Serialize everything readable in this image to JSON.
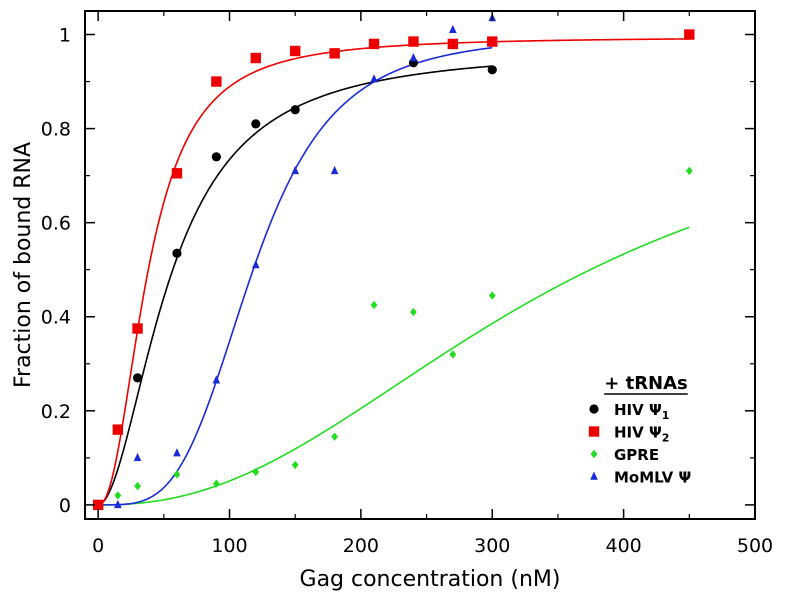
{
  "chart_data": {
    "type": "scatter",
    "title": "",
    "xlabel": "Gag concentration (nM)",
    "ylabel": "Fraction of bound RNA",
    "xlim": [
      -10,
      500
    ],
    "ylim": [
      -0.03,
      1.05
    ],
    "xticks": [
      0,
      100,
      200,
      300,
      400,
      500
    ],
    "yticks": [
      0,
      0.2,
      0.4,
      0.6,
      0.8,
      1
    ],
    "xtick_labels": [
      "0",
      "100",
      "200",
      "300",
      "400",
      "500"
    ],
    "ytick_labels": [
      "0",
      "0.2",
      "0.4",
      "0.6",
      "0.8",
      "1"
    ],
    "grid": false,
    "legend": {
      "title": "+ tRNAs",
      "placement": "bottom-right"
    },
    "series": [
      {
        "name": "HIV Ψ1",
        "label_main": "HIV Ψ",
        "label_sub": "1",
        "color": "#000000",
        "marker": "circle",
        "points": [
          [
            0,
            0
          ],
          [
            30,
            0.27
          ],
          [
            60,
            0.535
          ],
          [
            90,
            0.74
          ],
          [
            120,
            0.81
          ],
          [
            150,
            0.84
          ],
          [
            240,
            0.94
          ],
          [
            300,
            0.925
          ]
        ],
        "fit": {
          "vmax": 0.97,
          "k50": 55,
          "n": 1.9,
          "xmax": 300
        }
      },
      {
        "name": "HIV Ψ2",
        "label_main": "HIV Ψ",
        "label_sub": "2",
        "color": "#ee0000",
        "marker": "square",
        "points": [
          [
            0,
            0
          ],
          [
            15,
            0.16
          ],
          [
            30,
            0.375
          ],
          [
            60,
            0.705
          ],
          [
            90,
            0.9
          ],
          [
            120,
            0.95
          ],
          [
            150,
            0.965
          ],
          [
            180,
            0.96
          ],
          [
            210,
            0.98
          ],
          [
            240,
            0.985
          ],
          [
            270,
            0.98
          ],
          [
            300,
            0.985
          ],
          [
            450,
            1.0
          ]
        ],
        "fit": {
          "vmax": 0.995,
          "k50": 38,
          "n": 2.2,
          "xmax": 450
        }
      },
      {
        "name": "GPRE",
        "label_main": "GPRE",
        "label_sub": "",
        "color": "#22dd22",
        "marker": "diamond",
        "points": [
          [
            15,
            0.02
          ],
          [
            30,
            0.04
          ],
          [
            60,
            0.065
          ],
          [
            90,
            0.045
          ],
          [
            120,
            0.07
          ],
          [
            150,
            0.085
          ],
          [
            180,
            0.145
          ],
          [
            210,
            0.425
          ],
          [
            240,
            0.41
          ],
          [
            270,
            0.32
          ],
          [
            300,
            0.445
          ],
          [
            450,
            0.71
          ]
        ],
        "fit": {
          "vmax": 0.9,
          "k50": 340,
          "n": 2.3,
          "xmax": 450
        }
      },
      {
        "name": "MoMLV Ψ",
        "label_main": "MoMLV Ψ",
        "label_sub": "",
        "color": "#1a2ad8",
        "marker": "triangle",
        "points": [
          [
            15,
            0.0
          ],
          [
            30,
            0.1
          ],
          [
            60,
            0.11
          ],
          [
            90,
            0.265
          ],
          [
            120,
            0.51
          ],
          [
            150,
            0.71
          ],
          [
            180,
            0.71
          ],
          [
            210,
            0.905
          ],
          [
            240,
            0.95
          ],
          [
            270,
            1.01
          ],
          [
            300,
            1.035
          ]
        ],
        "fit": {
          "vmax": 1.0,
          "k50": 118,
          "n": 3.8,
          "xmax": 300
        }
      }
    ]
  }
}
